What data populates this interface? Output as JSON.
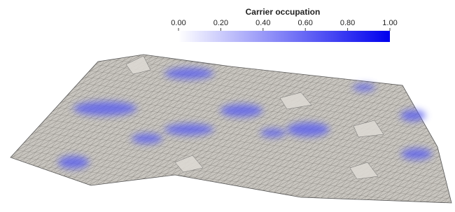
{
  "colorbar": {
    "title": "Carrier occupation",
    "range": [
      0,
      1
    ],
    "ticks": [
      {
        "value": 0,
        "label": "0.00"
      },
      {
        "value": 0.2,
        "label": "0.20"
      },
      {
        "value": 0.4,
        "label": "0.40"
      },
      {
        "value": 0.6,
        "label": "0.60"
      },
      {
        "value": 0.8,
        "label": "0.80"
      },
      {
        "value": 1,
        "label": "1.00"
      }
    ],
    "colors": [
      "#ffffff",
      "#0000ee"
    ]
  }
}
